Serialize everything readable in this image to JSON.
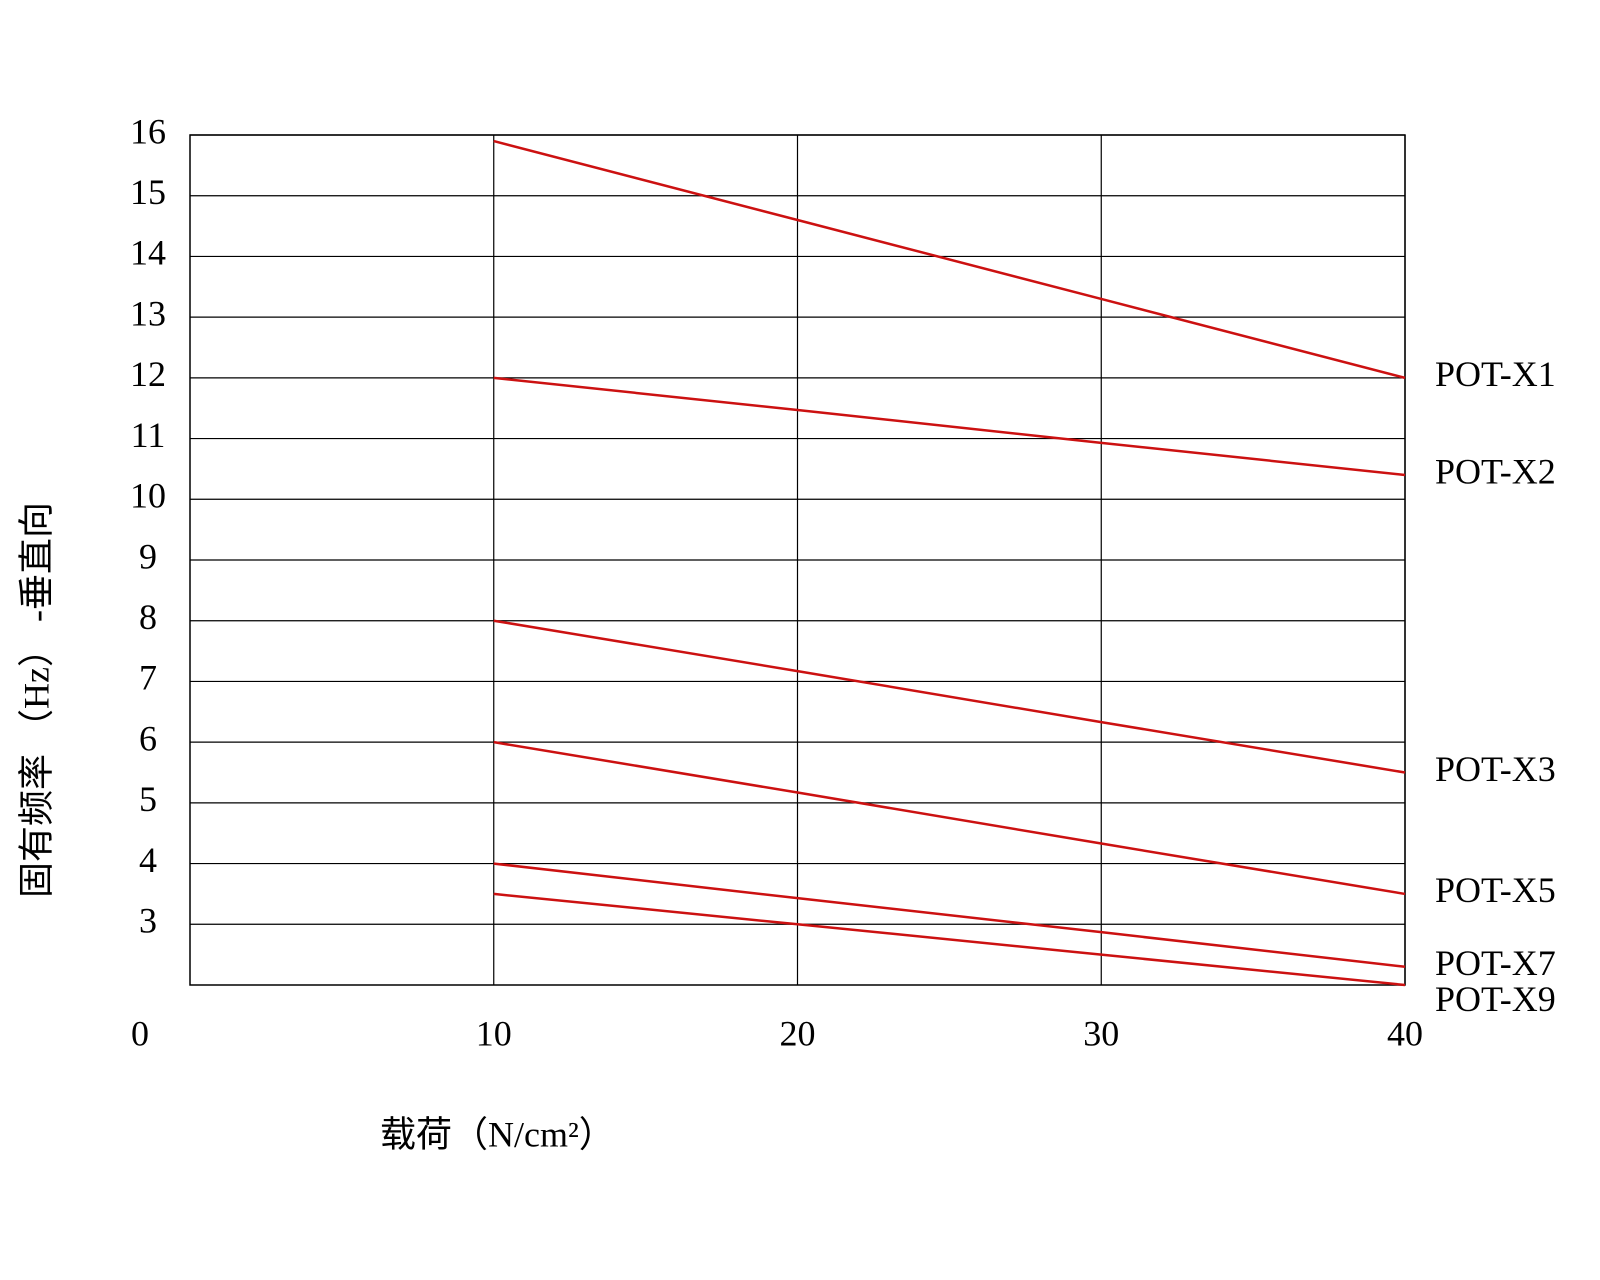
{
  "chart_data": {
    "type": "line",
    "x_label": "载荷（N/cm²）",
    "y_label": "固有频率 （Hz） -垂直向",
    "x": [
      10,
      20,
      30,
      40
    ],
    "series": [
      {
        "name": "POT-X1",
        "color": "#cc1111",
        "values": [
          15.9,
          14.6,
          13.3,
          12.0
        ]
      },
      {
        "name": "POT-X2",
        "color": "#cc1111",
        "values": [
          12.0,
          11.47,
          10.93,
          10.4
        ]
      },
      {
        "name": "POT-X3",
        "color": "#cc1111",
        "values": [
          8.0,
          7.17,
          6.33,
          5.5
        ]
      },
      {
        "name": "POT-X5",
        "color": "#cc1111",
        "values": [
          6.0,
          5.17,
          4.33,
          3.5
        ]
      },
      {
        "name": "POT-X7",
        "color": "#cc1111",
        "values": [
          4.0,
          3.43,
          2.87,
          2.3
        ]
      },
      {
        "name": "POT-X9",
        "color": "#cc1111",
        "values": [
          3.5,
          3.0,
          2.5,
          2.0
        ]
      }
    ],
    "xlim": [
      0,
      40
    ],
    "xticks": [
      0,
      10,
      20,
      30,
      40
    ],
    "ylim": [
      2,
      16
    ],
    "yticks": [
      3,
      4,
      5,
      6,
      7,
      8,
      9,
      10,
      11,
      12,
      13,
      14,
      15,
      16
    ],
    "grid": true
  }
}
